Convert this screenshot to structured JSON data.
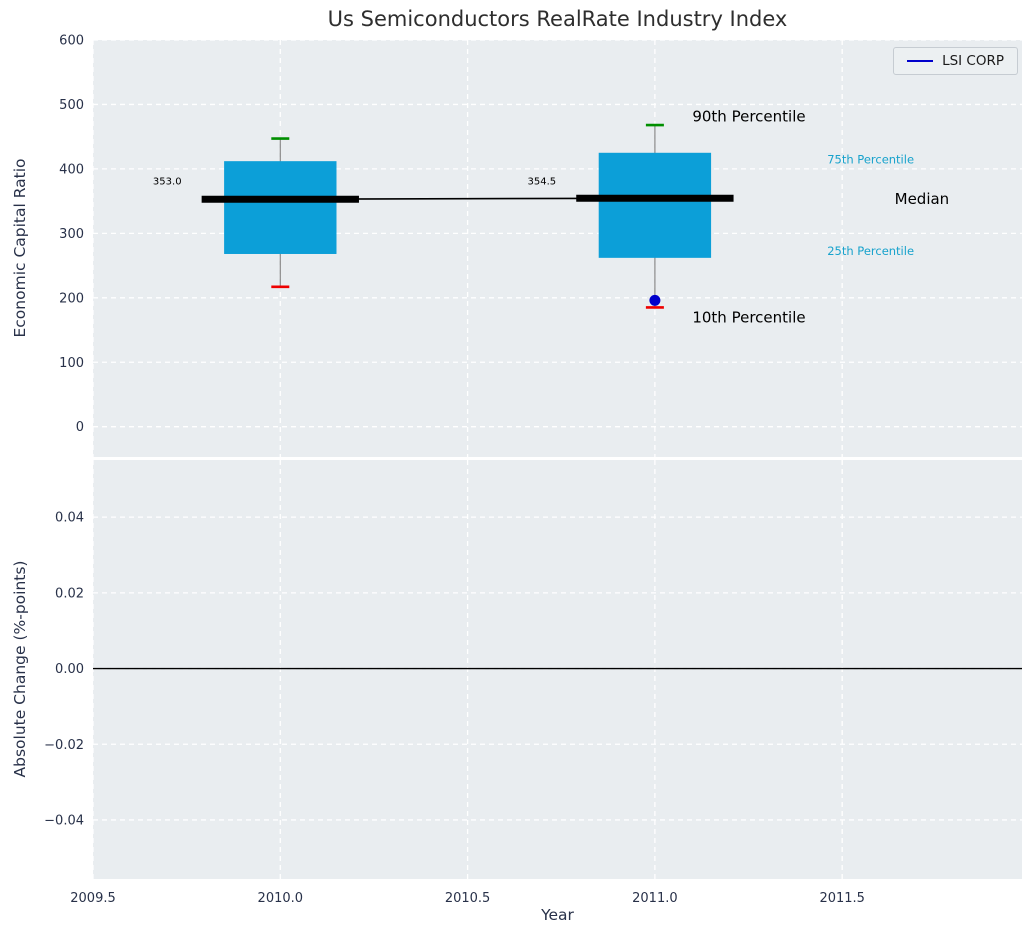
{
  "title": "Us Semiconductors RealRate Industry Index",
  "legend": {
    "label": "LSI CORP",
    "line_color": "#0000cc"
  },
  "colors": {
    "axes_bg": "#e9edf0",
    "grid": "#ffffff",
    "tick_text": "#283149",
    "title_text": "#2e2e2e",
    "box_fill": "#0c9fd8",
    "median": "#000000",
    "whisker": "#8a8a8a",
    "cap_high": "#008f00",
    "cap_low": "#ee0000",
    "point": "#0000cc",
    "percentile_label": "#17a2cc"
  },
  "chart_data": [
    {
      "type": "box",
      "title": "Us Semiconductors RealRate Industry Index",
      "ylabel": "Economic Capital Ratio",
      "ylim": [
        -47,
        600
      ],
      "yticks": [
        0,
        100,
        200,
        300,
        400,
        500,
        600
      ],
      "ytick_labels": [
        "0",
        "100",
        "200",
        "300",
        "400",
        "500",
        "600"
      ],
      "xlim": [
        2009.5,
        2011.98
      ],
      "grid": true,
      "legend_entry": "LSI CORP",
      "box_halfwidth": 0.15,
      "median_halfwidth": 0.21,
      "boxes": [
        {
          "x": 2010,
          "median": 353.0,
          "median_label": "353.0",
          "q1": 268,
          "q3": 412,
          "whisker_low": 217,
          "whisker_high": 447
        },
        {
          "x": 2011,
          "median": 354.5,
          "median_label": "354.5",
          "q1": 262,
          "q3": 425,
          "whisker_low": 185,
          "whisker_high": 468
        }
      ],
      "point": {
        "x": 2011,
        "y": 196,
        "series": "LSI CORP"
      },
      "annotations": [
        {
          "text": "90th Percentile",
          "x": 2011.1,
          "y": 482,
          "size": 15,
          "color": "#000000",
          "anchor": "start"
        },
        {
          "text": "10th Percentile",
          "x": 2011.1,
          "y": 170,
          "size": 15,
          "color": "#000000",
          "anchor": "start"
        },
        {
          "text": "75th Percentile",
          "x": 2011.46,
          "y": 415,
          "size": 11.5,
          "color": "#17a2cc",
          "anchor": "start"
        },
        {
          "text": "25th Percentile",
          "x": 2011.46,
          "y": 273,
          "size": 11.5,
          "color": "#17a2cc",
          "anchor": "start"
        },
        {
          "text": "Median",
          "x": 2011.64,
          "y": 354,
          "size": 15,
          "color": "#000000",
          "anchor": "start"
        },
        {
          "text": "353.0",
          "x": 2009.66,
          "y": 381,
          "size": 10,
          "color": "#000000",
          "anchor": "start"
        },
        {
          "text": "354.5",
          "x": 2010.66,
          "y": 381,
          "size": 10,
          "color": "#000000",
          "anchor": "start"
        }
      ]
    },
    {
      "type": "line",
      "ylabel": "Absolute Change (%-points)",
      "xlabel": "Year",
      "ylim": [
        -0.0556,
        0.0551
      ],
      "xlim": [
        2009.5,
        2011.98
      ],
      "grid": true,
      "yticks": [
        0.04,
        0.02,
        0,
        -0.02,
        -0.04
      ],
      "ytick_labels": [
        "0.04",
        "0.02",
        "0.00",
        "−0.02",
        "−0.04"
      ],
      "xticks": [
        2009.5,
        2010.0,
        2010.5,
        2011.0,
        2011.5
      ],
      "xtick_labels": [
        "2009.5",
        "2010.0",
        "2010.5",
        "2011.0",
        "2011.5"
      ],
      "zero_line": 0.0
    }
  ]
}
